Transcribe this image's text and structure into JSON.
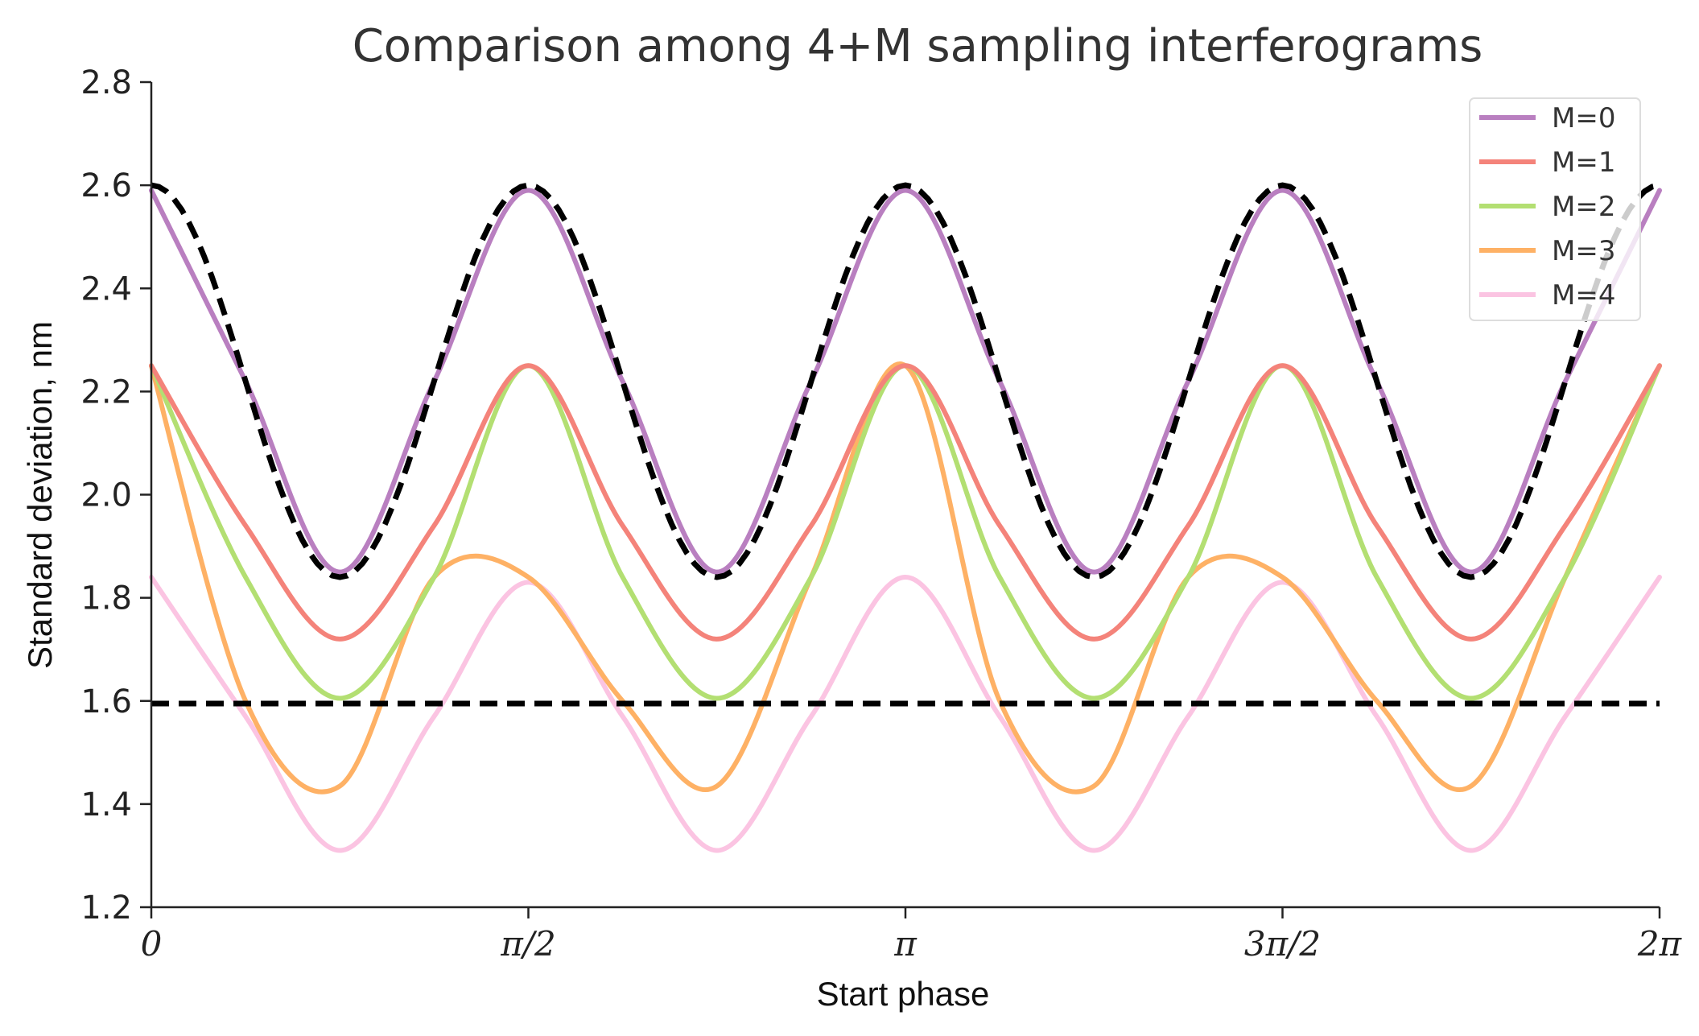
{
  "chart_data": {
    "type": "line",
    "title": "Comparison among 4+M sampling interferograms",
    "xlabel": "Start phase",
    "ylabel": "Standard deviation, nm",
    "xlim": [
      0,
      6.283185307
    ],
    "ylim": [
      1.2,
      2.8
    ],
    "x_ticks": [
      {
        "value": 0,
        "label": "0"
      },
      {
        "value": 1.570796327,
        "label": "π/2"
      },
      {
        "value": 3.141592654,
        "label": "π"
      },
      {
        "value": 4.71238898,
        "label": "3π/2"
      },
      {
        "value": 6.283185307,
        "label": "2π"
      }
    ],
    "y_ticks": [
      {
        "value": 1.2,
        "label": "1.2"
      },
      {
        "value": 1.4,
        "label": "1.4"
      },
      {
        "value": 1.6,
        "label": "1.6"
      },
      {
        "value": 1.8,
        "label": "1.8"
      },
      {
        "value": 2.0,
        "label": "2.0"
      },
      {
        "value": 2.2,
        "label": "2.2"
      },
      {
        "value": 2.4,
        "label": "2.4"
      },
      {
        "value": 2.6,
        "label": "2.6"
      },
      {
        "value": 2.8,
        "label": "2.8"
      }
    ],
    "grid": false,
    "legend_position": "top-right",
    "x": [
      0,
      0.3927,
      0.7854,
      1.1781,
      1.5708,
      1.9635,
      2.3562,
      2.7489,
      3.1416,
      3.5343,
      3.927,
      4.3197,
      4.7124,
      5.1051,
      5.4978,
      5.8905,
      6.2832
    ],
    "series": [
      {
        "name": "M=0",
        "color": "#b97fc0",
        "width": 6,
        "dash": "solid",
        "values": [
          2.59,
          2.22,
          1.85,
          2.22,
          2.59,
          2.22,
          1.85,
          2.22,
          2.59,
          2.22,
          1.85,
          2.22,
          2.59,
          2.22,
          1.85,
          2.22,
          2.59
        ]
      },
      {
        "name": "M=1",
        "color": "#f4837a",
        "width": 6,
        "dash": "solid",
        "values": [
          2.25,
          1.94,
          1.72,
          1.94,
          2.25,
          1.94,
          1.72,
          1.94,
          2.25,
          1.94,
          1.72,
          1.94,
          2.25,
          1.94,
          1.72,
          1.94,
          2.25
        ]
      },
      {
        "name": "M=2",
        "color": "#b3df72",
        "width": 6,
        "dash": "solid",
        "values": [
          2.25,
          1.84,
          1.605,
          1.84,
          2.25,
          1.84,
          1.605,
          1.84,
          2.25,
          1.84,
          1.605,
          1.84,
          2.25,
          1.84,
          1.605,
          1.84,
          2.25
        ]
      },
      {
        "name": "M=3",
        "color": "#feb165",
        "width": 6,
        "dash": "solid",
        "values": [
          2.25,
          1.6,
          1.435,
          1.84,
          1.84,
          1.6,
          1.435,
          1.84,
          2.25,
          1.6,
          1.435,
          1.84,
          1.84,
          1.6,
          1.435,
          1.84,
          2.25
        ]
      },
      {
        "name": "M=4",
        "color": "#fbc4e2",
        "width": 6,
        "dash": "solid",
        "values": [
          1.84,
          1.57,
          1.31,
          1.57,
          1.83,
          1.57,
          1.31,
          1.57,
          1.84,
          1.57,
          1.31,
          1.57,
          1.83,
          1.57,
          1.31,
          1.57,
          1.84
        ]
      }
    ],
    "reference_lines": [
      {
        "kind": "curve",
        "color": "#000000",
        "dash": "dashed",
        "description_values_low": 1.84,
        "description_values_high": 2.6
      },
      {
        "kind": "horizontal",
        "y": 1.595,
        "color": "#000000",
        "dash": "dashed"
      }
    ]
  }
}
